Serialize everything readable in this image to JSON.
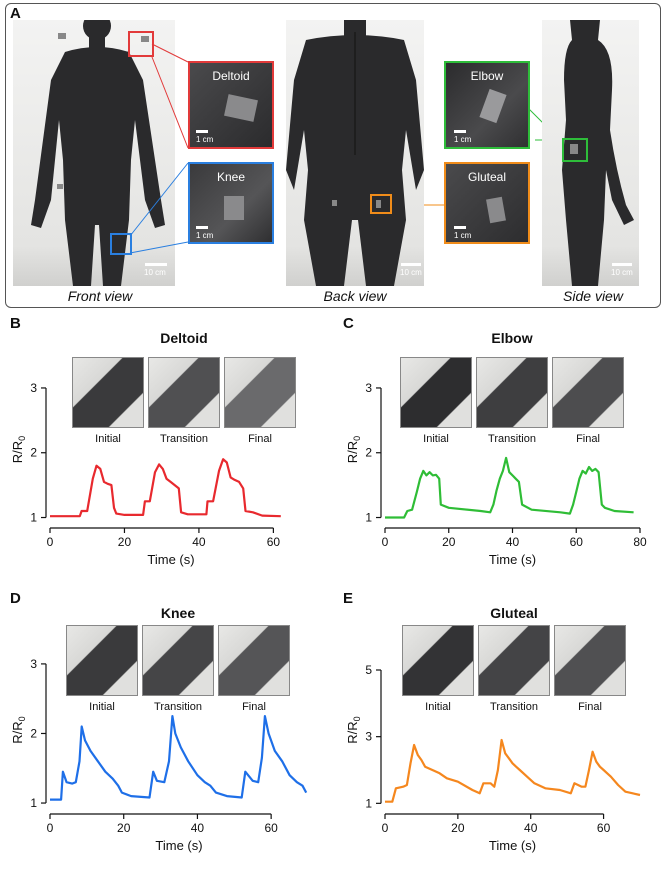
{
  "figure": {
    "panel_a": {
      "label": "A",
      "views": [
        {
          "caption": "Front view",
          "scale": "10 cm"
        },
        {
          "caption": "Back view",
          "scale": "10 cm"
        },
        {
          "caption": "Side view",
          "scale": "10 cm"
        }
      ],
      "insets": [
        {
          "label": "Deltoid",
          "scale": "1 cm",
          "color": "#e23a3a"
        },
        {
          "label": "Knee",
          "scale": "1 cm",
          "color": "#2a7fe0"
        },
        {
          "label": "Elbow",
          "scale": "1 cm",
          "color": "#2ebd3a"
        },
        {
          "label": "Gluteal",
          "scale": "1 cm",
          "color": "#f08c1a"
        }
      ]
    },
    "phase_labels": [
      "Initial",
      "Transition",
      "Final"
    ]
  },
  "chart_data": [
    {
      "panel": "B",
      "type": "line",
      "title": "Deltoid",
      "xlabel": "Time (s)",
      "ylabel": "R/R0",
      "xlim": [
        0,
        65
      ],
      "ylim": [
        0.9,
        3.2
      ],
      "xticks": [
        0,
        20,
        40,
        60
      ],
      "yticks": [
        1,
        2,
        3
      ],
      "color": "#e8292e",
      "x": [
        0,
        8,
        8.5,
        10,
        11.5,
        12.5,
        13.5,
        14.5,
        15.5,
        16.5,
        17.2,
        17.8,
        20,
        25,
        25.5,
        26.8,
        28.2,
        29.3,
        30.3,
        31.3,
        32.4,
        33.5,
        34.6,
        35.2,
        37,
        42,
        42.3,
        43.8,
        45.4,
        46.5,
        47.5,
        48.5,
        49.6,
        50.8,
        51.9,
        52.5,
        54.5,
        57,
        62
      ],
      "y": [
        1.02,
        1.02,
        1.1,
        1.1,
        1.6,
        1.8,
        1.75,
        1.55,
        1.52,
        1.5,
        1.15,
        1.06,
        1.04,
        1.04,
        1.25,
        1.25,
        1.7,
        1.82,
        1.75,
        1.6,
        1.55,
        1.5,
        1.45,
        1.08,
        1.05,
        1.05,
        1.25,
        1.25,
        1.72,
        1.9,
        1.85,
        1.62,
        1.58,
        1.55,
        1.45,
        1.1,
        1.08,
        1.03,
        1.02
      ]
    },
    {
      "panel": "C",
      "type": "line",
      "title": "Elbow",
      "xlabel": "Time (s)",
      "ylabel": "R/R0",
      "xlim": [
        0,
        80
      ],
      "ylim": [
        0.9,
        3.2
      ],
      "xticks": [
        0,
        20,
        40,
        60,
        80
      ],
      "yticks": [
        1,
        2,
        3
      ],
      "color": "#2fbd36",
      "x": [
        0,
        6,
        7,
        8.5,
        10,
        11,
        12,
        13,
        14,
        15,
        16,
        17,
        17.5,
        20,
        30,
        33,
        34,
        35,
        36,
        37,
        38,
        39,
        40,
        41,
        42,
        43,
        46,
        55,
        58,
        59,
        60,
        61,
        62,
        63,
        64,
        65,
        66,
        67,
        68,
        69,
        72,
        78
      ],
      "y": [
        1.0,
        1.0,
        1.1,
        1.12,
        1.4,
        1.6,
        1.72,
        1.65,
        1.7,
        1.65,
        1.66,
        1.6,
        1.2,
        1.15,
        1.1,
        1.08,
        1.2,
        1.42,
        1.6,
        1.72,
        1.92,
        1.7,
        1.65,
        1.6,
        1.55,
        1.2,
        1.12,
        1.08,
        1.06,
        1.2,
        1.4,
        1.6,
        1.72,
        1.68,
        1.78,
        1.72,
        1.75,
        1.7,
        1.2,
        1.15,
        1.1,
        1.08
      ]
    },
    {
      "panel": "D",
      "type": "line",
      "title": "Knee",
      "xlabel": "Time (s)",
      "ylabel": "R/R0",
      "xlim": [
        0,
        70
      ],
      "ylim": [
        0.9,
        3.2
      ],
      "xticks": [
        0,
        20,
        40,
        60
      ],
      "yticks": [
        1,
        2,
        3
      ],
      "color": "#1e6fe8",
      "x": [
        0,
        3,
        3.5,
        4.5,
        6,
        7,
        8,
        8.6,
        9.5,
        11,
        13,
        15,
        17,
        18.5,
        19.5,
        22,
        27,
        28,
        29,
        31,
        32.3,
        33.2,
        34,
        35.5,
        37.5,
        40,
        42,
        43.5,
        45,
        48,
        52,
        53,
        55,
        56.5,
        57.5,
        58.3,
        59.3,
        61,
        63,
        65,
        67,
        68.5,
        69.5
      ],
      "y": [
        1.05,
        1.05,
        1.45,
        1.3,
        1.28,
        1.3,
        1.6,
        2.1,
        1.9,
        1.75,
        1.6,
        1.45,
        1.35,
        1.25,
        1.15,
        1.1,
        1.08,
        1.45,
        1.32,
        1.3,
        1.6,
        2.25,
        2.0,
        1.8,
        1.6,
        1.4,
        1.3,
        1.25,
        1.15,
        1.1,
        1.08,
        1.45,
        1.32,
        1.3,
        1.65,
        2.25,
        2.0,
        1.75,
        1.6,
        1.4,
        1.3,
        1.25,
        1.15
      ]
    },
    {
      "panel": "E",
      "type": "line",
      "title": "Gluteal",
      "xlabel": "Time (s)",
      "ylabel": "R/R0",
      "xlim": [
        0,
        70
      ],
      "ylim": [
        0.8,
        5.6
      ],
      "xticks": [
        0,
        20,
        40,
        60
      ],
      "yticks": [
        1,
        3,
        5
      ],
      "color": "#f5871e",
      "x": [
        0,
        2,
        3,
        5,
        6,
        7,
        8,
        9,
        10,
        11,
        13,
        15,
        17,
        20,
        24,
        26,
        27,
        29,
        30,
        31,
        32,
        33,
        34,
        35,
        36,
        37,
        39,
        41,
        44,
        48,
        51,
        52,
        54,
        55,
        56,
        57,
        58,
        59,
        60,
        61,
        62,
        64,
        66,
        68,
        70
      ],
      "y": [
        1.05,
        1.05,
        1.45,
        1.5,
        1.55,
        2.2,
        2.75,
        2.45,
        2.3,
        2.1,
        2.0,
        1.9,
        1.75,
        1.65,
        1.4,
        1.3,
        1.6,
        1.6,
        1.5,
        2.0,
        2.9,
        2.5,
        2.35,
        2.2,
        2.1,
        2.0,
        1.8,
        1.6,
        1.45,
        1.4,
        1.3,
        1.6,
        1.5,
        1.5,
        2.0,
        2.55,
        2.25,
        2.1,
        2.0,
        1.9,
        1.8,
        1.55,
        1.35,
        1.3,
        1.25
      ]
    }
  ]
}
